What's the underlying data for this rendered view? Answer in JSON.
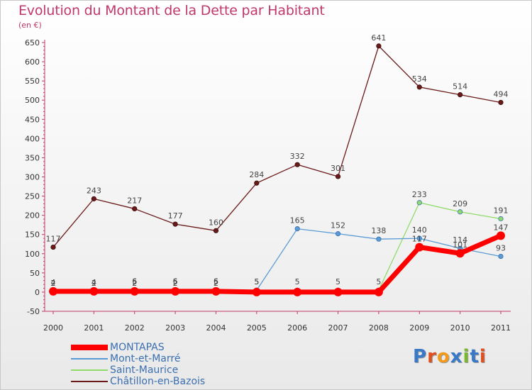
{
  "title": "Evolution du Montant de la Dette par Habitant",
  "subtitle": "(en €)",
  "logo": {
    "text": "Proxiti",
    "colors": [
      "#3a78c8",
      "#e0501e",
      "#f29a1c",
      "#3a78c8",
      "#79b82a",
      "#3a78c8",
      "#e0501e"
    ]
  },
  "chart_data": {
    "type": "line",
    "title": "Evolution du Montant de la Dette par Habitant",
    "ylabel": "(en €)",
    "xlabel": "",
    "x": [
      "2000",
      "2001",
      "2002",
      "2003",
      "2004",
      "2005",
      "2006",
      "2007",
      "2008",
      "2009",
      "2010",
      "2011"
    ],
    "ylim": [
      -50,
      650
    ],
    "yticks": [
      -50,
      0,
      50,
      100,
      150,
      200,
      250,
      300,
      350,
      400,
      450,
      500,
      550,
      600,
      650
    ],
    "grid": false,
    "legend": "bottom-left",
    "series": [
      {
        "name": "MONTAPAS",
        "color": "#ff0000",
        "width": 7,
        "marker_r": 6,
        "values": [
          2,
          2,
          2,
          2,
          2,
          0,
          0,
          0,
          0,
          117,
          101,
          147
        ],
        "labels": [
          "2",
          "2",
          "2",
          "2",
          "2",
          "",
          "",
          "",
          "",
          "117",
          "101",
          "147"
        ]
      },
      {
        "name": "Mont-et-Marré",
        "color": "#5b9bd5",
        "width": 1.3,
        "marker_r": 3.2,
        "values": [
          4,
          4,
          6,
          6,
          6,
          5,
          165,
          152,
          138,
          140,
          114,
          93
        ],
        "labels": [
          "4",
          "4",
          "6",
          "6",
          "6",
          "5",
          "165",
          "152",
          "138",
          "140",
          "114",
          "93"
        ]
      },
      {
        "name": "Saint-Maurice",
        "color": "#8fdc6a",
        "width": 1.3,
        "marker_r": 3.2,
        "values": [
          2,
          4,
          5,
          5,
          5,
          5,
          5,
          5,
          5,
          233,
          209,
          191
        ],
        "labels": [
          "2",
          "4",
          "5",
          "5",
          "5",
          "5",
          "5",
          "5",
          "5",
          "233",
          "209",
          "191"
        ]
      },
      {
        "name": "Châtillon-en-Bazois",
        "color": "#6b1a1a",
        "width": 1.3,
        "marker_r": 3.2,
        "values": [
          117,
          243,
          217,
          177,
          160,
          284,
          332,
          301,
          641,
          534,
          514,
          494
        ],
        "labels": [
          "117",
          "243",
          "217",
          "177",
          "160",
          "284",
          "332",
          "301",
          "641",
          "534",
          "514",
          "494"
        ]
      }
    ]
  }
}
